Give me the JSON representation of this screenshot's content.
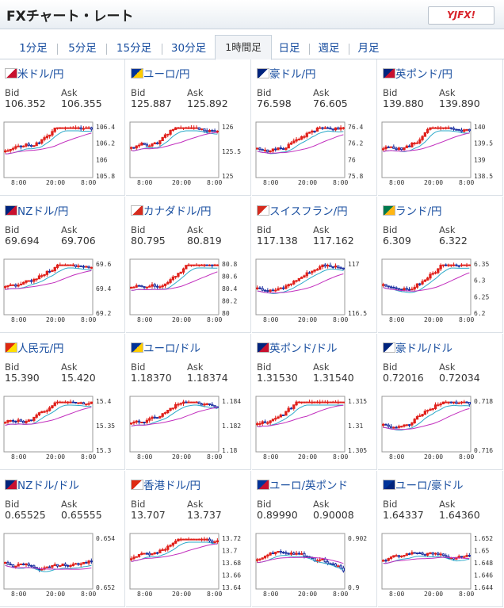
{
  "header": {
    "title": "FXチャート・レート",
    "logo": "YJFX!"
  },
  "tabs": [
    {
      "label": "1分足"
    },
    {
      "label": "5分足"
    },
    {
      "label": "15分足"
    },
    {
      "label": "30分足"
    },
    {
      "label": "1時間足",
      "active": true
    },
    {
      "label": "日足"
    },
    {
      "label": "週足"
    },
    {
      "label": "月足"
    }
  ],
  "labels": {
    "bid": "Bid",
    "ask": "Ask"
  },
  "pairs": [
    {
      "name": "米ドル/円",
      "bid": "106.352",
      "ask": "106.355",
      "yticks": [
        "106.4",
        "106.2",
        "106",
        "105.8"
      ],
      "xticks": [
        "8:00",
        "20:00",
        "8:00"
      ],
      "trend": "up"
    },
    {
      "name": "ユーロ/円",
      "bid": "125.887",
      "ask": "125.892",
      "yticks": [
        "126",
        "125.5",
        "125"
      ],
      "xticks": [
        "8:00",
        "20:00",
        "8:00"
      ],
      "trend": "up"
    },
    {
      "name": "豪ドル/円",
      "bid": "76.598",
      "ask": "76.605",
      "yticks": [
        "76.4",
        "76.2",
        "76",
        "75.8"
      ],
      "xticks": [
        "8:00",
        "20:00",
        "8:00"
      ],
      "trend": "up"
    },
    {
      "name": "英ポンド/円",
      "bid": "139.880",
      "ask": "139.890",
      "yticks": [
        "140",
        "139.5",
        "139",
        "138.5"
      ],
      "xticks": [
        "8:00",
        "20:00",
        "8:00"
      ],
      "trend": "up"
    },
    {
      "name": "NZドル/円",
      "bid": "69.694",
      "ask": "69.706",
      "yticks": [
        "69.6",
        "69.4",
        "69.2"
      ],
      "xticks": [
        "8:00",
        "20:00",
        "8:00"
      ],
      "trend": "up"
    },
    {
      "name": "カナダドル/円",
      "bid": "80.795",
      "ask": "80.819",
      "yticks": [
        "80.8",
        "80.6",
        "80.4",
        "80.2",
        "80"
      ],
      "xticks": [
        "8:00",
        "20:00",
        "8:00"
      ],
      "trend": "up"
    },
    {
      "name": "スイスフラン/円",
      "bid": "117.138",
      "ask": "117.162",
      "yticks": [
        "117",
        "116.5"
      ],
      "xticks": [
        "8:00",
        "20:00",
        "8:00"
      ],
      "trend": "up"
    },
    {
      "name": "ランド/円",
      "bid": "6.309",
      "ask": "6.322",
      "yticks": [
        "6.35",
        "6.3",
        "6.25",
        "6.2"
      ],
      "xticks": [
        "8:00",
        "20:00",
        "8:00"
      ],
      "trend": "up"
    },
    {
      "name": "人民元/円",
      "bid": "15.390",
      "ask": "15.420",
      "yticks": [
        "15.4",
        "15.35",
        "15.3"
      ],
      "xticks": [
        "8:00",
        "20:00",
        "8:00"
      ],
      "trend": "up"
    },
    {
      "name": "ユーロ/ドル",
      "bid": "1.18370",
      "ask": "1.18374",
      "yticks": [
        "1.184",
        "1.182",
        "1.18"
      ],
      "xticks": [
        "8:00",
        "20:00",
        "8:00"
      ],
      "trend": "up"
    },
    {
      "name": "英ポンド/ドル",
      "bid": "1.31530",
      "ask": "1.31540",
      "yticks": [
        "1.315",
        "1.31",
        "1.305"
      ],
      "xticks": [
        "8:00",
        "20:00",
        "8:00"
      ],
      "trend": "up"
    },
    {
      "name": "豪ドル/ドル",
      "bid": "0.72016",
      "ask": "0.72034",
      "yticks": [
        "0.718",
        "0.716"
      ],
      "xticks": [
        "8:00",
        "20:00",
        "8:00"
      ],
      "trend": "up"
    },
    {
      "name": "NZドル/ドル",
      "bid": "0.65525",
      "ask": "0.65555",
      "yticks": [
        "0.654",
        "0.652"
      ],
      "xticks": [
        "8:00",
        "20:00",
        "8:00"
      ],
      "trend": "flat"
    },
    {
      "name": "香港ドル/円",
      "bid": "13.707",
      "ask": "13.737",
      "yticks": [
        "13.72",
        "13.7",
        "13.68",
        "13.66",
        "13.64"
      ],
      "xticks": [
        "8:00",
        "20:00",
        "8:00"
      ],
      "trend": "up"
    },
    {
      "name": "ユーロ/英ポンド",
      "bid": "0.89990",
      "ask": "0.90008",
      "yticks": [
        "0.902",
        "0.9"
      ],
      "xticks": [
        "8:00",
        "20:00",
        "8:00"
      ],
      "trend": "down"
    },
    {
      "name": "ユーロ/豪ドル",
      "bid": "1.64337",
      "ask": "1.64360",
      "yticks": [
        "1.652",
        "1.65",
        "1.648",
        "1.646",
        "1.644"
      ],
      "xticks": [
        "8:00",
        "20:00",
        "8:00"
      ],
      "trend": "flat"
    }
  ],
  "colors": {
    "link": "#1a4fa0",
    "up": "#e0201b",
    "down": "#1b2fa0",
    "ma_short": "#2ba9c9",
    "ma_long": "#c22fbe"
  }
}
